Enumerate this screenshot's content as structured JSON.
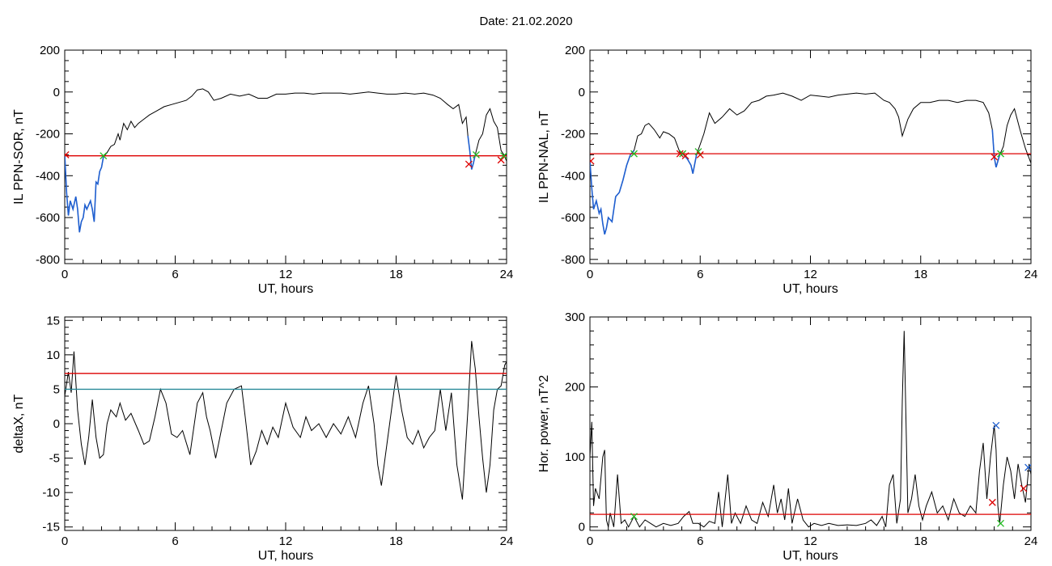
{
  "header": {
    "date_label": "Date:  21.02.2020"
  },
  "chart_data": [
    {
      "type": "line",
      "id": "sor",
      "xlabel": "UT, hours",
      "ylabel": "IL PPN-SOR, nT",
      "xlim": [
        0,
        24
      ],
      "ylim": [
        -820,
        200
      ],
      "xticks": [
        0,
        6,
        12,
        18,
        24
      ],
      "yticks": [
        -800,
        -600,
        -400,
        -200,
        0,
        200
      ],
      "threshold": {
        "value": -305,
        "color": "#dd0000"
      },
      "series": [
        {
          "color": "#000000",
          "x": [
            0,
            0.1,
            0.2,
            0.3,
            0.45,
            0.6,
            0.7,
            0.8,
            0.9,
            1.0,
            1.1,
            1.2,
            1.4,
            1.5,
            1.6,
            1.7,
            1.8,
            1.9,
            2.0,
            2.1,
            2.3,
            2.5,
            2.7,
            2.9,
            3.0,
            3.2,
            3.4,
            3.6,
            3.8,
            4.0,
            4.3,
            4.6,
            5.0,
            5.4,
            5.8,
            6.2,
            6.6,
            6.9,
            7.2,
            7.5,
            7.8,
            8.1,
            8.5,
            9.0,
            9.5,
            10.0,
            10.5,
            11.0,
            11.5,
            12.0,
            12.5,
            13.0,
            13.5,
            14.0,
            14.5,
            15.0,
            15.5,
            16.0,
            16.5,
            17.0,
            17.5,
            18.0,
            18.5,
            19.0,
            19.5,
            20.0,
            20.4,
            20.8,
            21.1,
            21.4,
            21.6,
            21.8,
            21.9,
            22.0,
            22.1,
            22.2,
            22.3,
            22.5,
            22.7,
            22.9,
            23.1,
            23.3,
            23.5,
            23.7,
            23.85,
            24.0
          ],
          "y": [
            -300,
            -480,
            -590,
            -520,
            -560,
            -500,
            -560,
            -670,
            -620,
            -600,
            -540,
            -560,
            -520,
            -560,
            -620,
            -430,
            -440,
            -380,
            -360,
            -310,
            -290,
            -260,
            -250,
            -200,
            -230,
            -150,
            -180,
            -140,
            -170,
            -150,
            -130,
            -110,
            -90,
            -70,
            -60,
            -50,
            -40,
            -20,
            10,
            15,
            0,
            -40,
            -30,
            -10,
            -20,
            -10,
            -30,
            -30,
            -10,
            -10,
            -5,
            -5,
            -10,
            -5,
            -5,
            -5,
            -10,
            -5,
            0,
            -5,
            -10,
            -10,
            -5,
            -10,
            -5,
            -15,
            -30,
            -60,
            -80,
            -60,
            -150,
            -120,
            -210,
            -280,
            -370,
            -340,
            -300,
            -230,
            -200,
            -110,
            -80,
            -140,
            -170,
            -280,
            -300,
            -330
          ]
        },
        {
          "color": "#1f5fd0",
          "x": [
            0,
            0.1,
            0.2,
            0.3,
            0.45,
            0.6,
            0.7,
            0.8,
            0.9,
            1.0,
            1.1,
            1.2,
            1.4,
            1.5,
            1.6,
            1.7,
            1.8,
            1.9,
            2.0,
            2.1
          ],
          "y": [
            -300,
            -480,
            -590,
            -520,
            -560,
            -500,
            -560,
            -670,
            -620,
            -600,
            -540,
            -560,
            -520,
            -560,
            -620,
            -430,
            -440,
            -380,
            -360,
            -310
          ]
        },
        {
          "color": "#1f5fd0",
          "x": [
            21.9,
            22.0,
            22.1,
            22.2,
            22.3
          ],
          "y": [
            -210,
            -280,
            -370,
            -340,
            -300
          ]
        }
      ],
      "markers": [
        {
          "x": 0.05,
          "y": -300,
          "color": "#dd0000"
        },
        {
          "x": 2.1,
          "y": -305,
          "color": "#22bb22"
        },
        {
          "x": 21.95,
          "y": -345,
          "color": "#dd0000"
        },
        {
          "x": 22.35,
          "y": -300,
          "color": "#22bb22"
        },
        {
          "x": 23.7,
          "y": -325,
          "color": "#dd0000"
        },
        {
          "x": 23.85,
          "y": -305,
          "color": "#22bb22"
        }
      ]
    },
    {
      "type": "line",
      "id": "nal",
      "xlabel": "UT, hours",
      "ylabel": "IL PPN-NAL, nT",
      "xlim": [
        0,
        24
      ],
      "ylim": [
        -820,
        200
      ],
      "xticks": [
        0,
        6,
        12,
        18,
        24
      ],
      "yticks": [
        -800,
        -600,
        -400,
        -200,
        0,
        200
      ],
      "threshold": {
        "value": -295,
        "color": "#dd0000"
      },
      "series": [
        {
          "color": "#000000",
          "x": [
            0,
            0.1,
            0.2,
            0.35,
            0.5,
            0.6,
            0.7,
            0.8,
            0.9,
            1.0,
            1.2,
            1.4,
            1.6,
            1.8,
            2.0,
            2.2,
            2.4,
            2.6,
            2.8,
            3.0,
            3.2,
            3.5,
            3.8,
            4.0,
            4.3,
            4.6,
            4.9,
            5.1,
            5.3,
            5.5,
            5.6,
            5.8,
            6.0,
            6.2,
            6.5,
            6.8,
            7.2,
            7.6,
            8.0,
            8.4,
            8.8,
            9.2,
            9.6,
            10.0,
            10.5,
            11.0,
            11.5,
            12.0,
            12.5,
            13.0,
            13.5,
            14.0,
            14.5,
            15.0,
            15.5,
            16.0,
            16.3,
            16.6,
            16.8,
            17.0,
            17.3,
            17.6,
            18.0,
            18.5,
            19.0,
            19.5,
            20.0,
            20.5,
            21.0,
            21.4,
            21.7,
            21.9,
            22.0,
            22.1,
            22.3,
            22.5,
            22.7,
            22.9,
            23.1,
            23.4,
            23.7,
            24.0
          ],
          "y": [
            -330,
            -460,
            -560,
            -520,
            -580,
            -560,
            -630,
            -680,
            -650,
            -600,
            -620,
            -500,
            -480,
            -420,
            -350,
            -300,
            -280,
            -210,
            -200,
            -160,
            -150,
            -180,
            -220,
            -190,
            -200,
            -220,
            -290,
            -300,
            -320,
            -350,
            -390,
            -300,
            -250,
            -200,
            -100,
            -150,
            -120,
            -80,
            -110,
            -90,
            -50,
            -40,
            -20,
            -15,
            -5,
            -20,
            -40,
            -15,
            -20,
            -25,
            -15,
            -10,
            -5,
            -10,
            -5,
            -40,
            -50,
            -80,
            -120,
            -210,
            -130,
            -80,
            -50,
            -50,
            -40,
            -40,
            -50,
            -40,
            -40,
            -50,
            -100,
            -180,
            -310,
            -360,
            -300,
            -260,
            -160,
            -110,
            -80,
            -180,
            -270,
            -340
          ]
        },
        {
          "color": "#1f5fd0",
          "x": [
            0,
            0.1,
            0.2,
            0.35,
            0.5,
            0.6,
            0.7,
            0.8,
            0.9,
            1.0,
            1.2,
            1.4,
            1.6,
            1.8,
            2.0,
            2.2,
            2.4
          ],
          "y": [
            -330,
            -460,
            -560,
            -520,
            -580,
            -560,
            -630,
            -680,
            -650,
            -600,
            -620,
            -500,
            -480,
            -420,
            -350,
            -300,
            -280
          ]
        },
        {
          "color": "#1f5fd0",
          "x": [
            4.9,
            5.1,
            5.3,
            5.5,
            5.6,
            5.8
          ],
          "y": [
            -290,
            -300,
            -320,
            -350,
            -390,
            -300
          ]
        },
        {
          "color": "#1f5fd0",
          "x": [
            21.9,
            22.0,
            22.1,
            22.3
          ],
          "y": [
            -180,
            -310,
            -360,
            -300
          ]
        }
      ],
      "markers": [
        {
          "x": 0.05,
          "y": -330,
          "color": "#dd0000"
        },
        {
          "x": 2.4,
          "y": -295,
          "color": "#22bb22"
        },
        {
          "x": 4.9,
          "y": -295,
          "color": "#dd0000"
        },
        {
          "x": 5.05,
          "y": -295,
          "color": "#22bb22"
        },
        {
          "x": 5.2,
          "y": -305,
          "color": "#dd0000"
        },
        {
          "x": 5.9,
          "y": -285,
          "color": "#22bb22"
        },
        {
          "x": 6.0,
          "y": -300,
          "color": "#dd0000"
        },
        {
          "x": 22.0,
          "y": -310,
          "color": "#dd0000"
        },
        {
          "x": 22.35,
          "y": -295,
          "color": "#22bb22"
        }
      ]
    },
    {
      "type": "line",
      "id": "deltax",
      "xlabel": "UT, hours",
      "ylabel": "deltaX, nT",
      "xlim": [
        0,
        24
      ],
      "ylim": [
        -15.5,
        15.5
      ],
      "xticks": [
        0,
        6,
        12,
        18,
        24
      ],
      "yticks": [
        -15,
        -10,
        -5,
        0,
        5,
        10,
        15
      ],
      "threshold": {
        "value": 7.3,
        "color": "#dd0000"
      },
      "threshold2": {
        "value": 5.0,
        "color": "#2a8a9a"
      },
      "series": [
        {
          "color": "#000000",
          "x": [
            0,
            0.2,
            0.35,
            0.5,
            0.7,
            0.9,
            1.1,
            1.3,
            1.5,
            1.7,
            1.9,
            2.1,
            2.3,
            2.5,
            2.8,
            3.0,
            3.3,
            3.6,
            4.0,
            4.3,
            4.6,
            4.9,
            5.2,
            5.5,
            5.8,
            6.1,
            6.4,
            6.8,
            7.2,
            7.5,
            7.7,
            7.9,
            8.2,
            8.5,
            8.8,
            9.2,
            9.6,
            9.8,
            10.1,
            10.4,
            10.7,
            11.0,
            11.3,
            11.6,
            12.0,
            12.4,
            12.8,
            13.1,
            13.4,
            13.8,
            14.2,
            14.6,
            15.0,
            15.4,
            15.8,
            16.2,
            16.5,
            16.8,
            17.0,
            17.2,
            17.5,
            17.8,
            18.0,
            18.3,
            18.6,
            18.9,
            19.2,
            19.5,
            19.8,
            20.1,
            20.4,
            20.7,
            21.0,
            21.3,
            21.6,
            21.9,
            22.1,
            22.3,
            22.5,
            22.7,
            22.9,
            23.1,
            23.3,
            23.5,
            23.7,
            23.9,
            24.0
          ],
          "y": [
            4,
            7.5,
            4.5,
            10.5,
            2,
            -3,
            -6,
            -2,
            3.5,
            -2,
            -5,
            -4.5,
            0,
            2,
            1,
            3,
            0.5,
            1.5,
            -1,
            -3,
            -2.5,
            1,
            5,
            3,
            -1.5,
            -2,
            -1,
            -4.5,
            3,
            4.5,
            1,
            -1,
            -5,
            -1,
            3,
            5,
            5.5,
            1,
            -6,
            -4,
            -1,
            -3,
            -0.5,
            -2,
            3,
            -0.5,
            -2,
            1,
            -1,
            0,
            -2,
            0,
            -1.5,
            1,
            -2,
            3,
            5.5,
            0,
            -6,
            -9,
            -3,
            3,
            7,
            2,
            -2,
            -3,
            -1,
            -3.5,
            -2,
            -1,
            5,
            -1,
            4.5,
            -6,
            -11,
            2,
            12,
            8,
            1,
            -5,
            -10,
            -6,
            2,
            5,
            5.5,
            8.5,
            9
          ]
        }
      ],
      "markers": []
    },
    {
      "type": "line",
      "id": "power",
      "xlabel": "UT, hours",
      "ylabel": "Hor. power, nT^2",
      "xlim": [
        0,
        24
      ],
      "ylim": [
        -5,
        300
      ],
      "xticks": [
        0,
        6,
        12,
        18,
        24
      ],
      "yticks": [
        0,
        100,
        200,
        300
      ],
      "threshold": {
        "value": 18,
        "color": "#dd0000"
      },
      "series": [
        {
          "color": "#000000",
          "x": [
            0,
            0.1,
            0.2,
            0.3,
            0.5,
            0.7,
            0.8,
            0.9,
            1.0,
            1.1,
            1.3,
            1.5,
            1.7,
            1.9,
            2.1,
            2.4,
            2.7,
            3.0,
            3.3,
            3.6,
            4.0,
            4.4,
            4.8,
            5.1,
            5.4,
            5.6,
            5.9,
            6.2,
            6.5,
            6.8,
            7.0,
            7.2,
            7.5,
            7.7,
            7.9,
            8.2,
            8.5,
            8.8,
            9.1,
            9.4,
            9.7,
            10.0,
            10.2,
            10.4,
            10.6,
            10.8,
            11.0,
            11.3,
            11.6,
            11.9,
            12.2,
            12.6,
            13.0,
            13.5,
            14.0,
            14.5,
            15.0,
            15.3,
            15.6,
            15.9,
            16.1,
            16.3,
            16.5,
            16.7,
            16.9,
            17.0,
            17.1,
            17.2,
            17.3,
            17.5,
            17.7,
            17.9,
            18.1,
            18.3,
            18.6,
            18.9,
            19.2,
            19.5,
            19.8,
            20.1,
            20.4,
            20.7,
            21.0,
            21.2,
            21.4,
            21.6,
            21.8,
            22.0,
            22.1,
            22.2,
            22.3,
            22.5,
            22.7,
            22.9,
            23.1,
            23.3,
            23.5,
            23.7,
            23.9,
            24.0
          ],
          "y": [
            100,
            150,
            30,
            55,
            40,
            100,
            110,
            10,
            0,
            20,
            0,
            75,
            5,
            10,
            0,
            15,
            0,
            10,
            5,
            0,
            5,
            2,
            5,
            15,
            22,
            5,
            5,
            0,
            8,
            5,
            50,
            0,
            75,
            5,
            20,
            5,
            30,
            10,
            5,
            35,
            15,
            60,
            20,
            40,
            10,
            55,
            5,
            40,
            10,
            0,
            5,
            2,
            5,
            2,
            3,
            2,
            5,
            10,
            2,
            15,
            0,
            60,
            75,
            5,
            40,
            180,
            280,
            150,
            20,
            40,
            75,
            30,
            10,
            30,
            50,
            20,
            30,
            10,
            40,
            20,
            15,
            30,
            20,
            80,
            120,
            40,
            100,
            145,
            110,
            30,
            5,
            60,
            100,
            80,
            40,
            90,
            60,
            35,
            90,
            75
          ]
        }
      ],
      "markers": [
        {
          "x": 21.9,
          "y": 35,
          "color": "#dd0000"
        },
        {
          "x": 22.1,
          "y": 145,
          "color": "#1f5fd0"
        },
        {
          "x": 22.35,
          "y": 5,
          "color": "#22bb22"
        },
        {
          "x": 23.6,
          "y": 55,
          "color": "#dd0000"
        },
        {
          "x": 23.85,
          "y": 85,
          "color": "#1f5fd0"
        },
        {
          "x": 2.4,
          "y": 15,
          "color": "#22bb22"
        }
      ]
    }
  ]
}
